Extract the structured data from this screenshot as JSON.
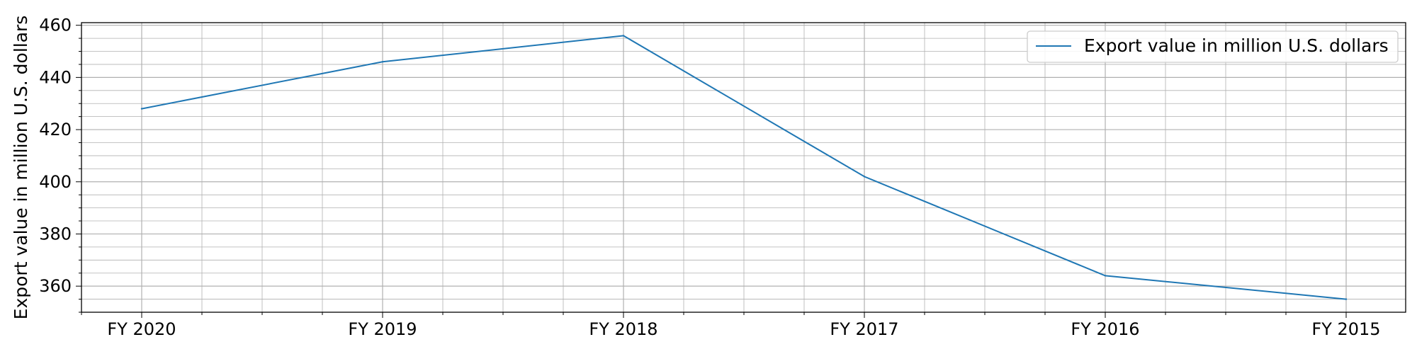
{
  "chart_data": {
    "type": "line",
    "title": "",
    "xlabel": "",
    "ylabel": "Export value in million U.S. dollars",
    "categories": [
      "FY 2020",
      "FY 2019",
      "FY 2018",
      "FY 2017",
      "FY 2016",
      "FY 2015"
    ],
    "series": [
      {
        "name": "Export value in million U.S. dollars",
        "values": [
          428,
          446,
          456,
          402,
          364,
          355
        ],
        "color": "#1f77b4"
      }
    ],
    "ylim": [
      350,
      461
    ],
    "y_ticks": [
      360,
      380,
      400,
      420,
      440,
      460
    ],
    "y_minor_step": 5,
    "x_minor_per_major": 4,
    "grid": true,
    "legend": "top-right"
  }
}
